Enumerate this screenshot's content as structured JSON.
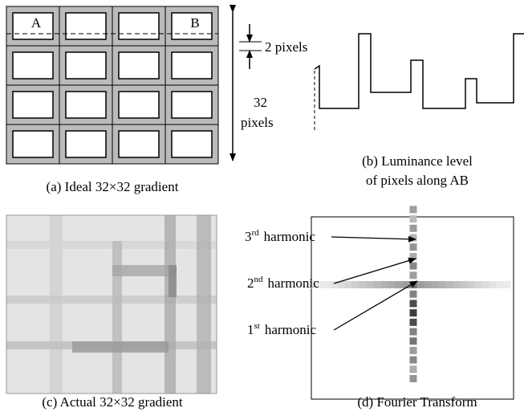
{
  "panel_a": {
    "label_a": "A",
    "label_b": "B",
    "height_top": "32",
    "height_bottom": "pixels",
    "gap": "2 pixels",
    "caption": "(a) Ideal 32×32 gradient"
  },
  "panel_b": {
    "caption_line1": "(b) Luminance level",
    "caption_line2": "of pixels along AB"
  },
  "panel_c": {
    "caption": "(c) Actual 32×32 gradient"
  },
  "panel_d": {
    "caption": "(d) Fourier Transform",
    "harmonics": [
      {
        "number": "3",
        "suffix": "rd",
        "word": "harmonic"
      },
      {
        "number": "2",
        "suffix": "nd",
        "word": "harmonic"
      },
      {
        "number": "1",
        "suffix": "st",
        "word": "harmonic"
      }
    ]
  }
}
